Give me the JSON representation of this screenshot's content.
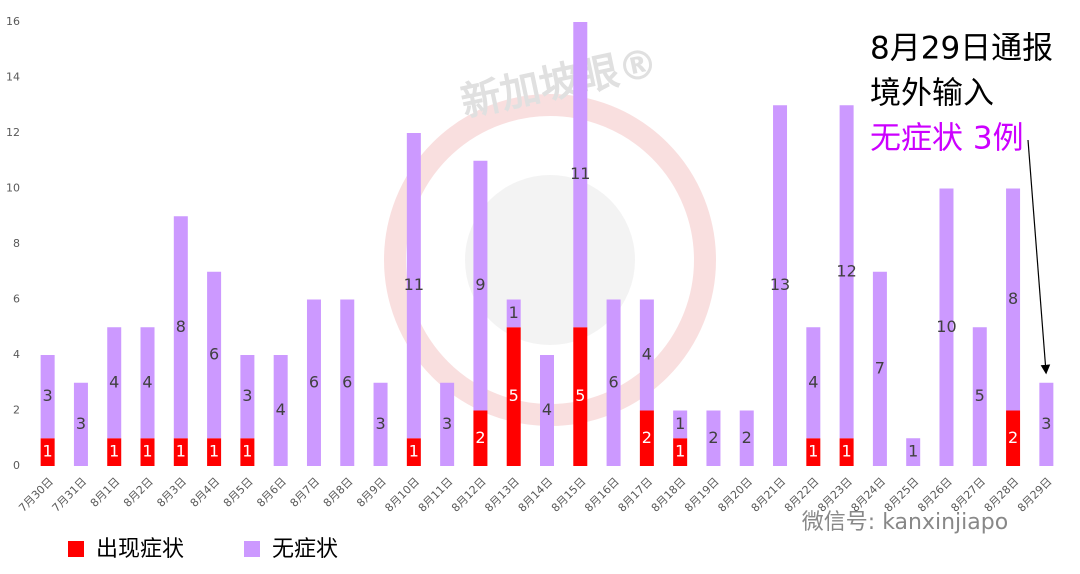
{
  "chart_data": {
    "type": "stacked_bar",
    "categories": [
      "7月30日",
      "7月31日",
      "8月1日",
      "8月2日",
      "8月3日",
      "8月4日",
      "8月5日",
      "8月6日",
      "8月7日",
      "8月8日",
      "8月9日",
      "8月10日",
      "8月11日",
      "8月12日",
      "8月13日",
      "8月14日",
      "8月15日",
      "8月16日",
      "8月17日",
      "8月18日",
      "8月19日",
      "8月20日",
      "8月21日",
      "8月22日",
      "8月23日",
      "8月24日",
      "8月25日",
      "8月26日",
      "8月27日",
      "8月28日",
      "8月29日"
    ],
    "series": [
      {
        "name": "出现症状",
        "color": "#ff0000",
        "values": [
          1,
          0,
          1,
          1,
          1,
          1,
          1,
          0,
          0,
          0,
          0,
          1,
          0,
          2,
          5,
          0,
          5,
          0,
          2,
          1,
          0,
          0,
          0,
          1,
          1,
          0,
          0,
          0,
          0,
          2,
          0
        ]
      },
      {
        "name": "无症状",
        "color": "#cc99ff",
        "values": [
          3,
          3,
          4,
          4,
          8,
          6,
          3,
          4,
          6,
          6,
          3,
          11,
          3,
          9,
          1,
          4,
          11,
          6,
          4,
          1,
          2,
          2,
          13,
          4,
          12,
          7,
          1,
          10,
          5,
          8,
          3
        ]
      }
    ],
    "ylim": [
      0,
      16
    ],
    "yticks": [
      0,
      2,
      4,
      6,
      8,
      10,
      12,
      14,
      16
    ],
    "grid": false,
    "legend": "bottom-left",
    "annotations": [
      {
        "text": "8月29日通报",
        "color": "#000000"
      },
      {
        "text": "境外输入",
        "color": "#000000"
      },
      {
        "text": "无症状 3例",
        "color": "#cc00ff"
      }
    ],
    "watermarks": [
      "新加坡眼®",
      "微信号: kanxinjiapo"
    ]
  }
}
